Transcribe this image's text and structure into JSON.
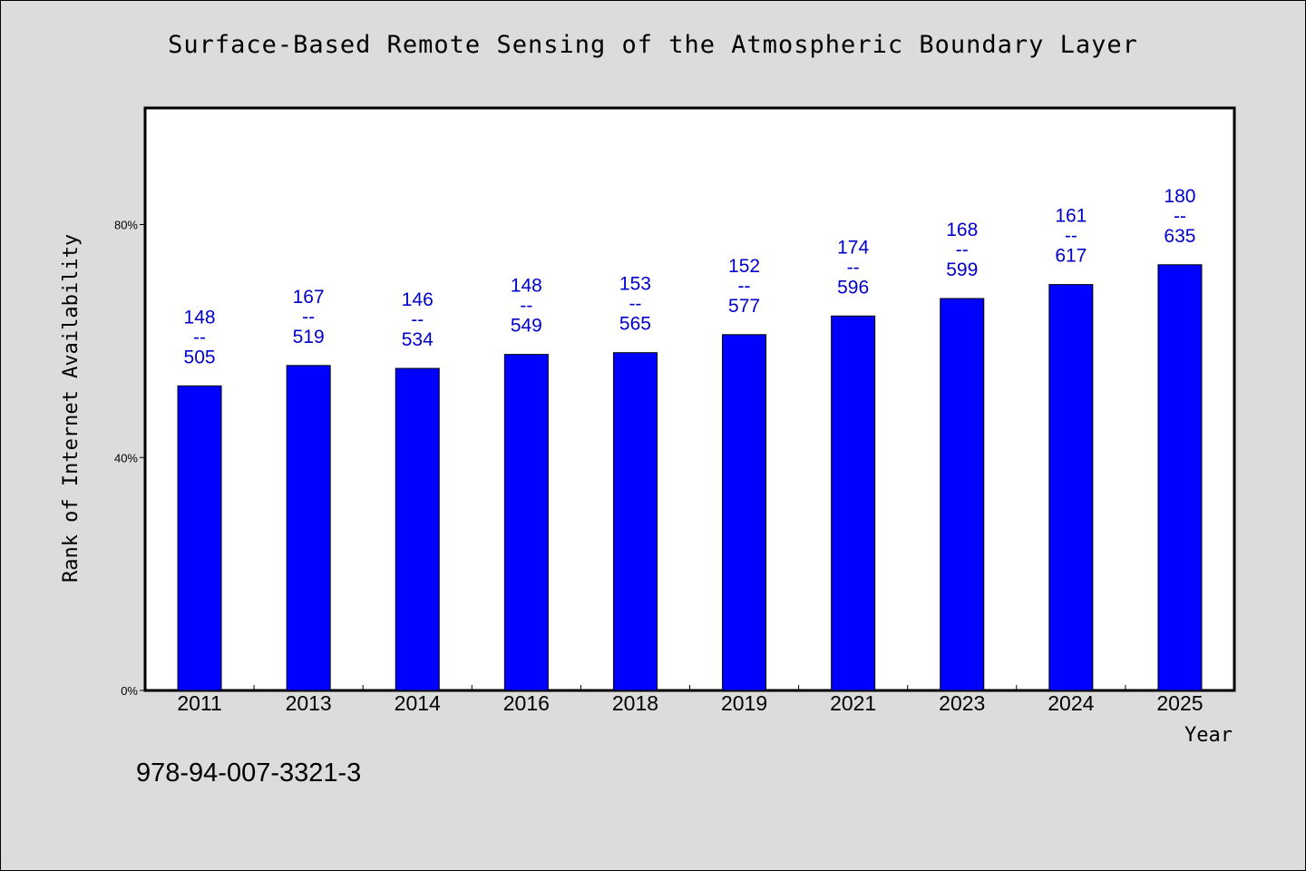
{
  "chart_data": {
    "type": "bar",
    "title": "Surface-Based Remote Sensing of the Atmospheric Boundary Layer",
    "xlabel": "Year",
    "ylabel": "Rank of Internet Availability",
    "categories": [
      "2011",
      "2013",
      "2014",
      "2016",
      "2018",
      "2019",
      "2021",
      "2023",
      "2024",
      "2025"
    ],
    "values": [
      52.3,
      55.8,
      55.3,
      57.7,
      58.0,
      61.1,
      64.3,
      67.3,
      69.7,
      73.1
    ],
    "data_labels": [
      {
        "top": "148",
        "sep": "--",
        "bottom": "505"
      },
      {
        "top": "167",
        "sep": "--",
        "bottom": "519"
      },
      {
        "top": "146",
        "sep": "--",
        "bottom": "534"
      },
      {
        "top": "148",
        "sep": "--",
        "bottom": "549"
      },
      {
        "top": "153",
        "sep": "--",
        "bottom": "565"
      },
      {
        "top": "152",
        "sep": "--",
        "bottom": "577"
      },
      {
        "top": "174",
        "sep": "--",
        "bottom": "596"
      },
      {
        "top": "168",
        "sep": "--",
        "bottom": "599"
      },
      {
        "top": "161",
        "sep": "--",
        "bottom": "617"
      },
      {
        "top": "180",
        "sep": "--",
        "bottom": "635"
      }
    ],
    "yticks": [
      {
        "value": 0,
        "label": "0%"
      },
      {
        "value": 40,
        "label": "40%"
      },
      {
        "value": 80,
        "label": "80%"
      }
    ],
    "ylim": [
      0,
      100
    ],
    "grid": false,
    "colors": {
      "bar": "#0000ff",
      "label": "#0000cc",
      "plot_bg": "#ffffff",
      "page_bg": "#dcdcdc"
    }
  },
  "footer": {
    "isbn": "978-94-007-3321-3"
  }
}
